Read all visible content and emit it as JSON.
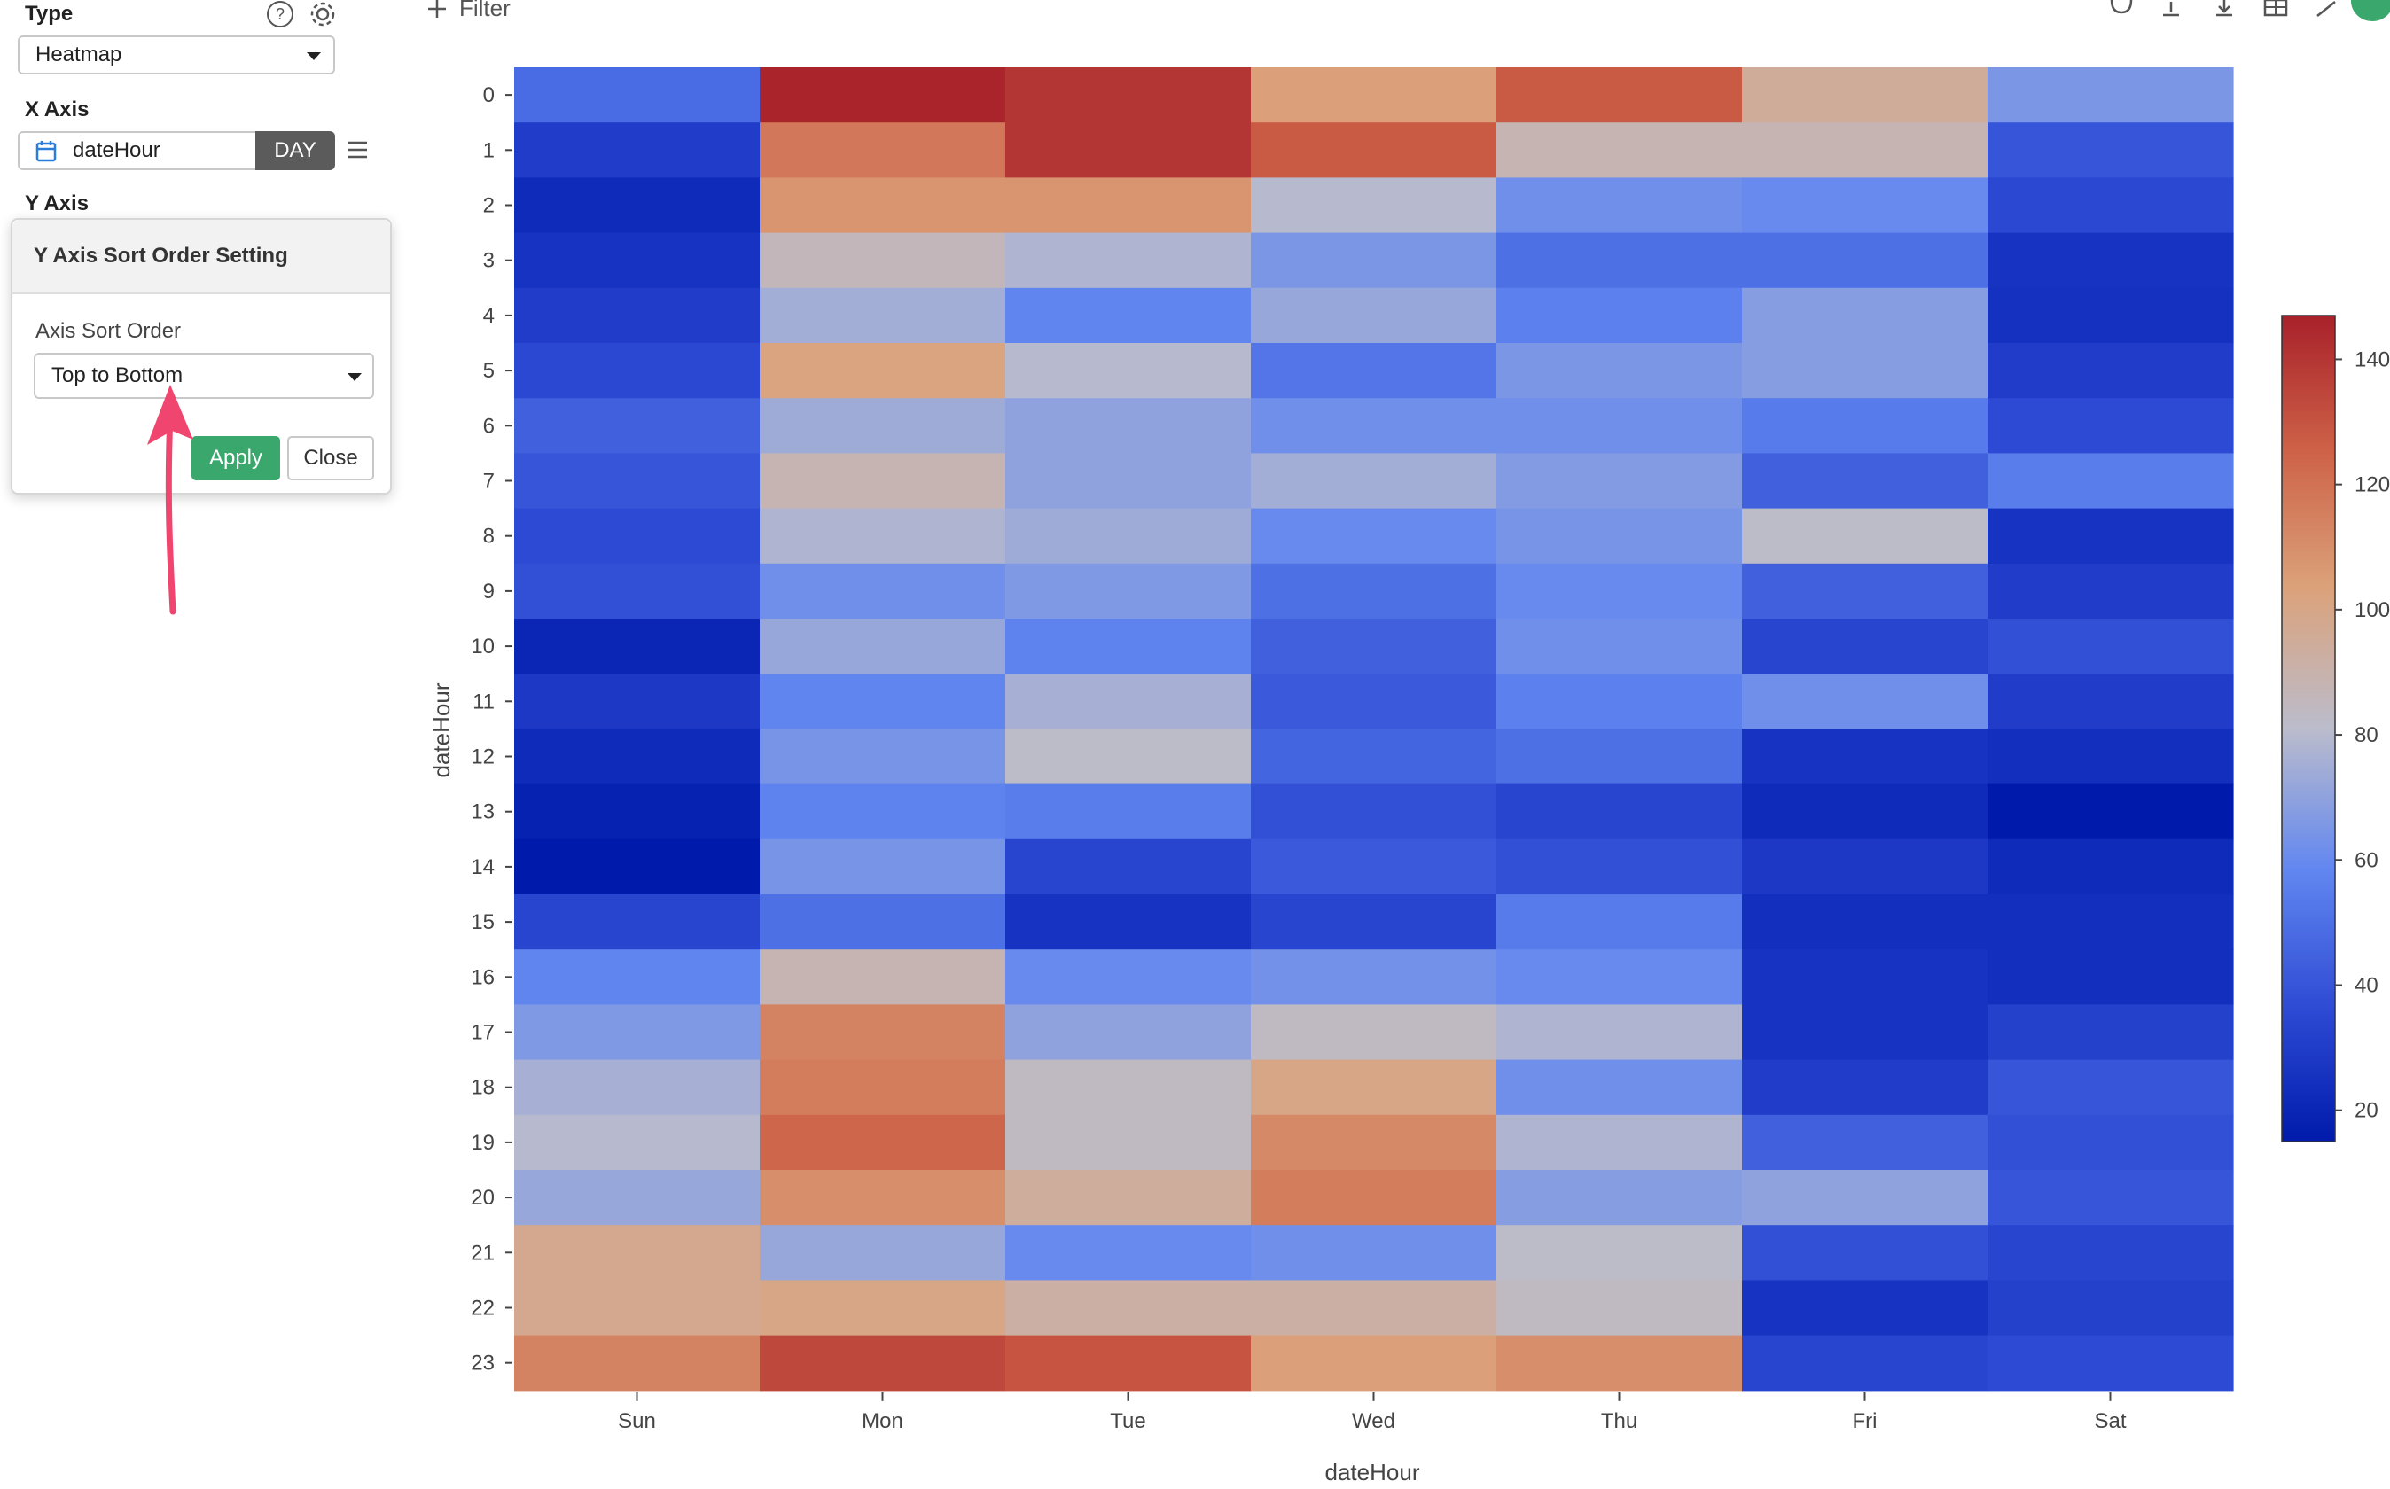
{
  "panel": {
    "type_label": "Type",
    "type_value": "Heatmap",
    "x_axis_label": "X Axis",
    "x_axis_field": "dateHour",
    "x_axis_unit": "DAY",
    "y_axis_label": "Y Axis",
    "popover": {
      "title": "Y Axis Sort Order Setting",
      "field_label": "Axis Sort Order",
      "field_value": "Top to Bottom",
      "apply_label": "Apply",
      "close_label": "Close"
    },
    "colors": {
      "apply_bg": "#3aa76d",
      "annotation_arrow": "#f0456e"
    }
  },
  "toolbar": {
    "filter_label": "Filter",
    "icons": [
      "comment-icon",
      "upload-icon",
      "download-icon",
      "table-icon",
      "expand-icon"
    ],
    "avatar_color": "#3aa76d"
  },
  "chart_data": {
    "type": "heatmap",
    "x": [
      "Sun",
      "Mon",
      "Tue",
      "Wed",
      "Thu",
      "Fri",
      "Sat"
    ],
    "y": [
      "0",
      "1",
      "2",
      "3",
      "4",
      "5",
      "6",
      "7",
      "8",
      "9",
      "10",
      "11",
      "12",
      "13",
      "14",
      "15",
      "16",
      "17",
      "18",
      "19",
      "20",
      "21",
      "22",
      "23"
    ],
    "xlabel": "dateHour",
    "ylabel": "dateHour",
    "title": "",
    "colorscale": "coolwarm",
    "zlim": [
      15,
      147
    ],
    "colorbar_ticks": [
      20,
      40,
      60,
      80,
      100,
      120,
      140
    ],
    "values": [
      [
        48,
        146,
        140,
        104,
        128,
        95,
        65
      ],
      [
        30,
        118,
        140,
        128,
        88,
        88,
        40
      ],
      [
        22,
        108,
        108,
        80,
        62,
        60,
        35
      ],
      [
        26,
        86,
        78,
        65,
        50,
        50,
        26
      ],
      [
        30,
        75,
        58,
        72,
        56,
        68,
        25
      ],
      [
        35,
        102,
        80,
        52,
        65,
        68,
        30
      ],
      [
        44,
        74,
        70,
        62,
        62,
        54,
        36
      ],
      [
        40,
        88,
        70,
        75,
        67,
        44,
        55
      ],
      [
        36,
        78,
        74,
        60,
        64,
        82,
        26
      ],
      [
        38,
        62,
        66,
        50,
        60,
        44,
        30
      ],
      [
        20,
        72,
        57,
        44,
        62,
        34,
        38
      ],
      [
        28,
        58,
        76,
        42,
        56,
        62,
        30
      ],
      [
        22,
        64,
        82,
        46,
        50,
        26,
        24
      ],
      [
        18,
        57,
        55,
        38,
        34,
        22,
        15
      ],
      [
        15,
        64,
        34,
        42,
        38,
        28,
        22
      ],
      [
        34,
        50,
        26,
        34,
        54,
        24,
        24
      ],
      [
        58,
        88,
        60,
        63,
        60,
        26,
        24
      ],
      [
        66,
        114,
        70,
        84,
        78,
        26,
        32
      ],
      [
        76,
        116,
        84,
        100,
        62,
        30,
        40
      ],
      [
        80,
        124,
        84,
        112,
        78,
        44,
        38
      ],
      [
        72,
        110,
        94,
        116,
        68,
        70,
        40
      ],
      [
        98,
        72,
        60,
        62,
        82,
        38,
        34
      ],
      [
        98,
        100,
        92,
        92,
        84,
        26,
        32
      ],
      [
        114,
        134,
        130,
        104,
        110,
        34,
        36
      ]
    ]
  }
}
